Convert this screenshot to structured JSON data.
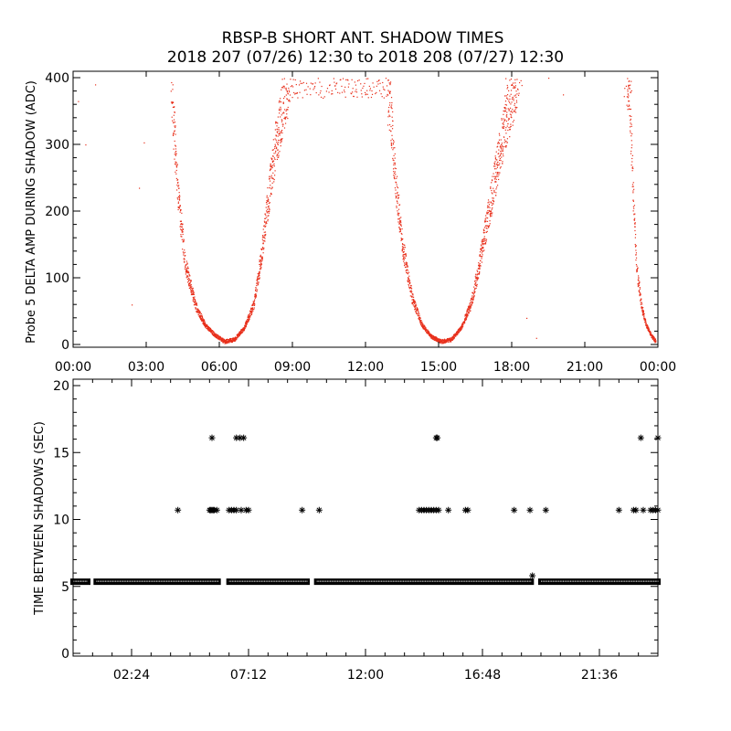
{
  "title": {
    "line1": "RBSP-B SHORT ANT. SHADOW TIMES",
    "line2": "2018 207 (07/26) 12:30 to 2018 208 (07/27) 12:30"
  },
  "colors": {
    "amp_points": "#e8301c",
    "axes": "#000000",
    "gap_marks": "#000000"
  },
  "chart_data": [
    {
      "type": "scatter",
      "name": "probe5-delta-amp",
      "ylabel": "Probe 5 DELTA AMP DURING SHADOW (ADC)",
      "xlabel": "",
      "x_unit": "hours",
      "xlim": [
        0,
        24
      ],
      "ylim": [
        0,
        400
      ],
      "x_tick_values": [
        0,
        3,
        6,
        9,
        12,
        15,
        18,
        21,
        24
      ],
      "x_tick_labels": [
        "00:00",
        "03:00",
        "06:00",
        "09:00",
        "12:00",
        "15:00",
        "18:00",
        "21:00",
        "00:00"
      ],
      "y_tick_values": [
        0,
        100,
        200,
        300,
        400
      ],
      "y_tick_labels": [
        "0",
        "100",
        "200",
        "300",
        "400"
      ],
      "marker": "dot",
      "color": "#e8301c",
      "envelope": {
        "x_hours": [
          4.0,
          4.3,
          4.6,
          5.0,
          5.4,
          5.8,
          6.2,
          6.6,
          7.0,
          7.4,
          7.7,
          8.0,
          8.3,
          8.6,
          8.9,
          9.5,
          10.5,
          11.5,
          12.5,
          13.0,
          13.2,
          13.5,
          13.9,
          14.3,
          14.7,
          15.1,
          15.5,
          15.9,
          16.3,
          16.6,
          16.9,
          17.3,
          17.7,
          18.2,
          22.8,
          22.95,
          23.1,
          23.3,
          23.5,
          23.7,
          23.9
        ],
        "y_adc": [
          400,
          220,
          120,
          60,
          30,
          15,
          5,
          8,
          25,
          60,
          130,
          220,
          300,
          360,
          400,
          400,
          400,
          400,
          400,
          360,
          250,
          150,
          70,
          30,
          12,
          5,
          8,
          25,
          60,
          110,
          170,
          250,
          330,
          400,
          400,
          250,
          120,
          60,
          30,
          15,
          5
        ]
      },
      "outliers": [
        [
          0.2,
          365
        ],
        [
          0.5,
          300
        ],
        [
          0.9,
          390
        ],
        [
          2.4,
          60
        ],
        [
          2.7,
          235
        ],
        [
          2.9,
          303
        ],
        [
          18.6,
          40
        ],
        [
          19.0,
          10
        ],
        [
          19.5,
          400
        ],
        [
          20.1,
          375
        ]
      ]
    },
    {
      "type": "scatter",
      "name": "time-between-shadows",
      "ylabel": "TIME BETWEEN SHADOWS (SEC)",
      "xlabel": "",
      "x_unit": "hours",
      "xlim": [
        0,
        24
      ],
      "ylim": [
        0,
        20
      ],
      "x_tick_values": [
        2.4,
        7.2,
        12.0,
        16.8,
        21.6
      ],
      "x_tick_labels": [
        "02:24",
        "07:12",
        "12:00",
        "16:48",
        "21:36"
      ],
      "y_tick_values": [
        0,
        5,
        10,
        15,
        20
      ],
      "y_tick_labels": [
        "0",
        "5",
        "10",
        "15",
        "20"
      ],
      "marker": "asterisk",
      "color": "#000000",
      "baseline_sec": 5.35,
      "baseline_segments": [
        [
          0.0,
          0.6
        ],
        [
          0.95,
          5.95
        ],
        [
          6.4,
          9.6
        ],
        [
          10.0,
          18.8
        ],
        [
          19.2,
          24.0
        ]
      ],
      "gaps_10_7": [
        4.3,
        5.6,
        5.65,
        5.7,
        5.75,
        5.8,
        5.9,
        6.4,
        6.5,
        6.6,
        6.7,
        6.9,
        7.1,
        7.2,
        9.4,
        10.1,
        14.2,
        14.3,
        14.4,
        14.5,
        14.6,
        14.7,
        14.8,
        14.9,
        15.0,
        15.4,
        16.1,
        16.2,
        18.1,
        18.75,
        19.4,
        22.4,
        23.0,
        23.1,
        23.4,
        23.7,
        23.8,
        23.9,
        24.0
      ],
      "gaps_16_1": [
        5.7,
        6.7,
        6.85,
        7.0,
        14.9,
        14.95,
        23.3,
        24.0
      ],
      "other_points": [
        [
          18.85,
          5.8
        ]
      ]
    }
  ]
}
